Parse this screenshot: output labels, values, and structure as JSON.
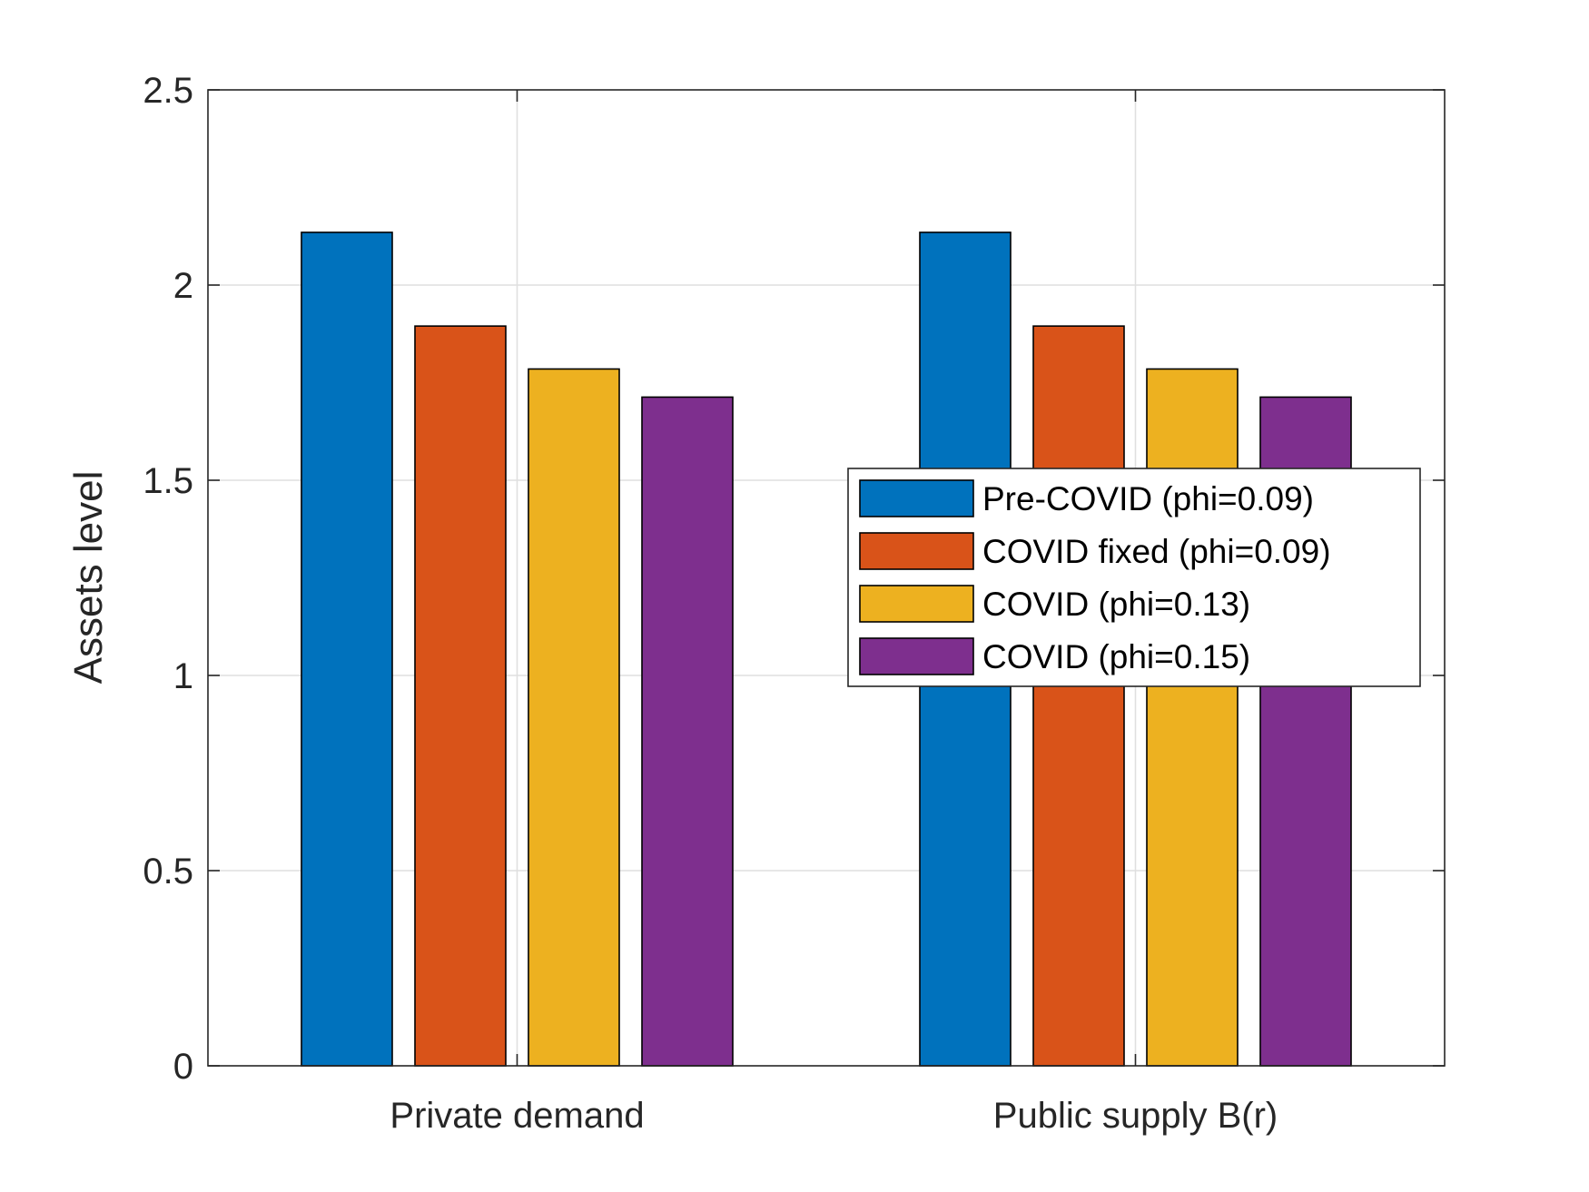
{
  "chart_data": {
    "type": "bar",
    "categories": [
      "Private demand",
      "Public supply B(r)"
    ],
    "series": [
      {
        "name": "Pre-COVID (phi=0.09)",
        "values": [
          2.135,
          2.135
        ],
        "color": "#0072BD"
      },
      {
        "name": "COVID fixed (phi=0.09)",
        "values": [
          1.895,
          1.895
        ],
        "color": "#D95319"
      },
      {
        "name": "COVID (phi=0.13)",
        "values": [
          1.785,
          1.785
        ],
        "color": "#EDB120"
      },
      {
        "name": "COVID (phi=0.15)",
        "values": [
          1.713,
          1.713
        ],
        "color": "#7E2F8E"
      }
    ],
    "title": "",
    "xlabel": "",
    "ylabel": "Assets level",
    "ylim": [
      0,
      2.5
    ],
    "yticks": [
      0,
      0.5,
      1,
      1.5,
      2,
      2.5
    ],
    "ytick_labels": [
      "0",
      "0.5",
      "1",
      "1.5",
      "2",
      "2.5"
    ],
    "grid": true,
    "legend_location": "right"
  }
}
